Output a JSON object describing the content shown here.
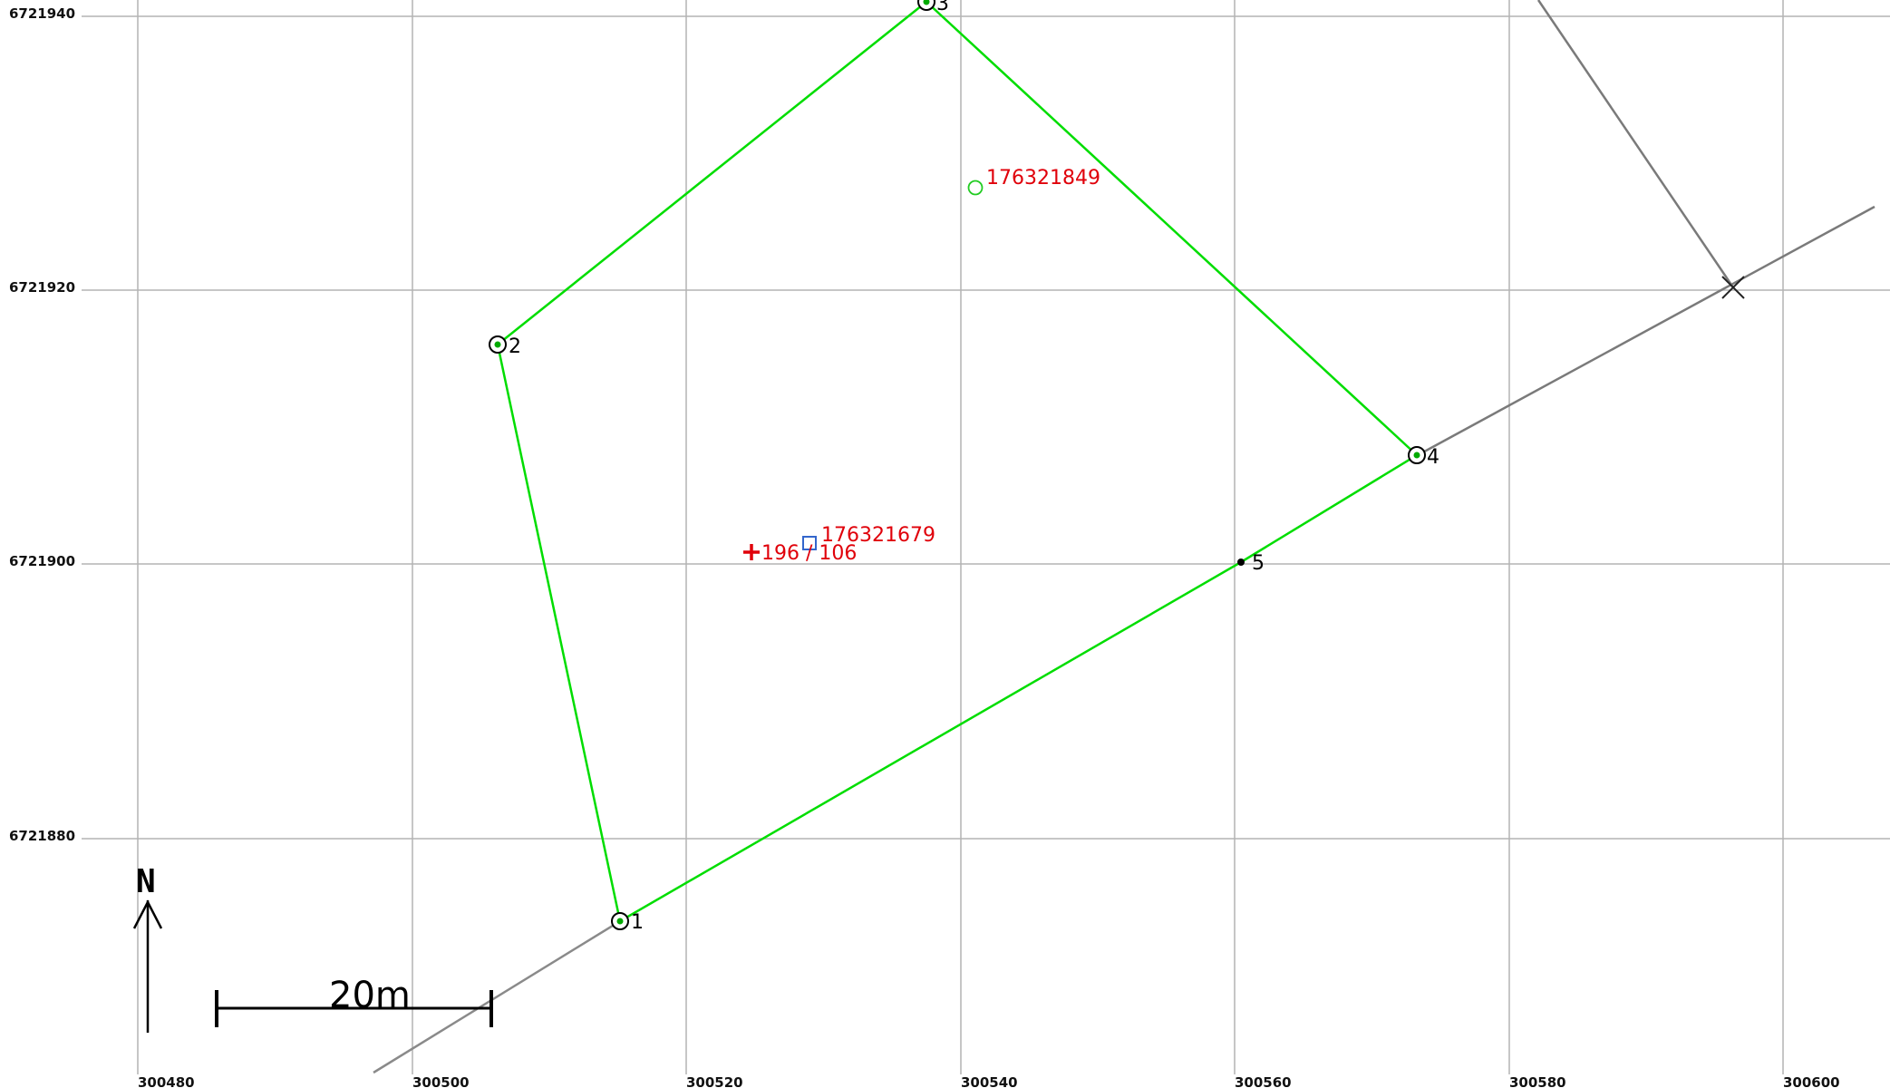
{
  "map": {
    "grid": {
      "x_ticks": [
        "300480",
        "300500",
        "300520",
        "300540",
        "300560",
        "300580",
        "300600"
      ],
      "y_ticks": [
        "6721940",
        "6721920",
        "6721900",
        "6721880"
      ]
    },
    "parcel": {
      "color": "#00dd00",
      "vertices": [
        {
          "id": "1",
          "label": "1",
          "x": 300514,
          "y": 6721874
        },
        {
          "id": "2",
          "label": "2",
          "x": 300505,
          "y": 6721916
        },
        {
          "id": "3",
          "label": "3",
          "x": 300537,
          "y": 6721941
        },
        {
          "id": "4",
          "label": "4",
          "x": 300572,
          "y": 6721908
        },
        {
          "id": "5",
          "label": "5",
          "x": 300560,
          "y": 6721900
        }
      ]
    },
    "boundary_lines": {
      "color": "#777777"
    },
    "points": [
      {
        "id": "176321849",
        "label": "176321849",
        "symbol": "circle-icon",
        "color": "#22cc22",
        "x": 300541,
        "y": 6721927
      },
      {
        "id": "176321679",
        "label": "176321679",
        "symbol": "square-icon",
        "color": "#3366cc",
        "x": 300528,
        "y": 6721902
      },
      {
        "id": "196-106",
        "label": "196 / 106",
        "symbol": "cross-icon",
        "color": "#e0000a",
        "x": 300523,
        "y": 6721901
      }
    ],
    "label_color": "#e0000a",
    "north_arrow": {
      "label": "N"
    },
    "scale_bar": {
      "label": "20m",
      "length_m": 20
    }
  }
}
